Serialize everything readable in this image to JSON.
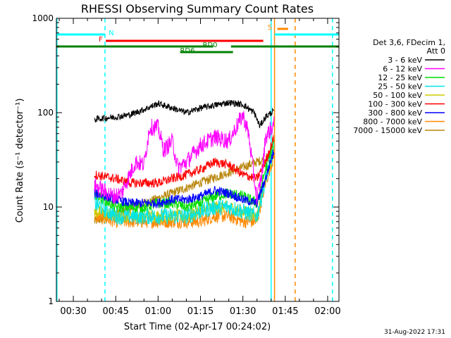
{
  "chart_data": {
    "type": "line",
    "title": "RHESSI Observing Summary Count Rates",
    "xlabel": "Start Time (02-Apr-17 00:24:02)",
    "ylabel": "Count Rate (s⁻¹ detector⁻¹)",
    "yscale": "log",
    "ylim": [
      1,
      1000
    ],
    "xlim_minutes": [
      24.0,
      124.0
    ],
    "x_ticks": [
      {
        "label": "00:30",
        "minute": 30
      },
      {
        "label": "00:45",
        "minute": 45
      },
      {
        "label": "01:00",
        "minute": 60
      },
      {
        "label": "01:15",
        "minute": 75
      },
      {
        "label": "01:30",
        "minute": 90
      },
      {
        "label": "01:45",
        "minute": 105
      },
      {
        "label": "02:00",
        "minute": 120
      }
    ],
    "y_ticks": [
      {
        "label": "1",
        "value": 1
      },
      {
        "label": "10",
        "value": 10
      },
      {
        "label": "100",
        "value": 100
      },
      {
        "label": "1000",
        "value": 1000
      }
    ],
    "legend": {
      "header_lines": [
        "Det 3,6, FDecim 1,",
        "Att 0"
      ],
      "placement": "right"
    },
    "series": [
      {
        "name": "3 - 6 keV",
        "color": "#000000",
        "x": [
          37.5,
          40,
          45,
          50,
          55,
          60,
          65,
          70,
          75,
          80,
          85,
          90,
          94,
          96,
          98,
          101
        ],
        "y": [
          85,
          87,
          90,
          95,
          108,
          125,
          112,
          100,
          112,
          120,
          128,
          122,
          100,
          72,
          90,
          105
        ]
      },
      {
        "name": "6 - 12 keV",
        "color": "#ff00ff",
        "x": [
          37.5,
          44,
          47,
          52,
          55,
          57,
          60,
          62,
          65,
          67,
          70,
          75,
          80,
          85,
          90,
          92,
          95,
          97,
          98,
          101
        ],
        "y": [
          17,
          13,
          14,
          30,
          28,
          70,
          70,
          40,
          50,
          26,
          30,
          45,
          55,
          50,
          95,
          60,
          12,
          25,
          55,
          75
        ]
      },
      {
        "name": "12 - 25 keV",
        "color": "#00dd00",
        "x": [
          37.5,
          45,
          50,
          55,
          60,
          65,
          70,
          75,
          80,
          85,
          90,
          95,
          98,
          101
        ],
        "y": [
          14,
          10,
          10,
          10,
          11,
          11,
          10,
          11,
          13,
          14,
          13,
          11,
          25,
          50
        ]
      },
      {
        "name": "25 - 50 keV",
        "color": "#00e5e5",
        "x": [
          37.5,
          45,
          50,
          55,
          60,
          65,
          70,
          75,
          80,
          85,
          90,
          95,
          98,
          101
        ],
        "y": [
          11,
          8,
          8,
          8,
          8,
          8,
          8,
          9,
          10,
          10,
          9,
          8,
          20,
          40
        ]
      },
      {
        "name": "50 - 100 keV",
        "color": "#cccc00",
        "x": [
          37.5,
          45,
          50,
          55,
          60,
          65,
          70,
          75,
          80,
          85,
          90,
          95,
          98,
          101
        ],
        "y": [
          9,
          8,
          8,
          8,
          8,
          8,
          8,
          9,
          10,
          10,
          9,
          8,
          20,
          40
        ]
      },
      {
        "name": "100 - 300 keV",
        "color": "#ff0000",
        "x": [
          37.5,
          45,
          50,
          55,
          60,
          65,
          70,
          75,
          80,
          85,
          90,
          95,
          98,
          101
        ],
        "y": [
          22,
          20,
          18,
          18,
          18,
          20,
          22,
          25,
          30,
          28,
          22,
          20,
          30,
          55
        ]
      },
      {
        "name": "300 - 800 keV",
        "color": "#0000ff",
        "x": [
          37.5,
          45,
          50,
          55,
          60,
          65,
          70,
          75,
          80,
          85,
          90,
          95,
          98,
          101
        ],
        "y": [
          14,
          12,
          11,
          11,
          11,
          12,
          12,
          13,
          15,
          14,
          12,
          11,
          20,
          40
        ]
      },
      {
        "name": "800 - 7000 keV",
        "color": "#ff8800",
        "x": [
          37.5,
          45,
          50,
          55,
          60,
          65,
          70,
          75,
          80,
          85,
          90,
          95,
          98,
          101
        ],
        "y": [
          8,
          7,
          7,
          7,
          7,
          7,
          7,
          7,
          8,
          8,
          7,
          7,
          18,
          35
        ]
      },
      {
        "name": "7000 - 15000 keV",
        "color": "#b8860b",
        "x": [
          37.5,
          101
        ],
        "y": [
          7,
          35
        ]
      }
    ],
    "flag_bars": [
      {
        "label": "N",
        "color": "#00ffff",
        "segments": [
          [
            24.0,
            41.2
          ],
          [
            101.2,
            124.0
          ]
        ]
      },
      {
        "label": "F",
        "color": "#ff0000",
        "segments": [
          [
            41.5,
            97.2
          ]
        ]
      },
      {
        "label": "RD0",
        "color": "#008000",
        "segments": [
          [
            24.0,
            79.5
          ],
          [
            85.8,
            124.0
          ]
        ]
      },
      {
        "label": "RD6",
        "color": "#008000",
        "segments": [
          [
            67.8,
            86.5
          ]
        ]
      },
      {
        "label": "S",
        "color": "#ff8800",
        "segments": [
          [
            102.2,
            106.0
          ]
        ]
      }
    ],
    "vertical_markers": [
      {
        "minute": 24.2,
        "color": "#00ffff",
        "style": "solid"
      },
      {
        "minute": 41.2,
        "color": "#00ffff",
        "style": "dashed"
      },
      {
        "minute": 100.0,
        "color": "#00ffff",
        "style": "solid"
      },
      {
        "minute": 101.2,
        "color": "#ff8800",
        "style": "solid"
      },
      {
        "minute": 108.5,
        "color": "#ff8800",
        "style": "dashed"
      },
      {
        "minute": 121.7,
        "color": "#00ffff",
        "style": "dashed"
      }
    ],
    "footer_date": "31-Aug-2022 17:31",
    "grid": false
  }
}
